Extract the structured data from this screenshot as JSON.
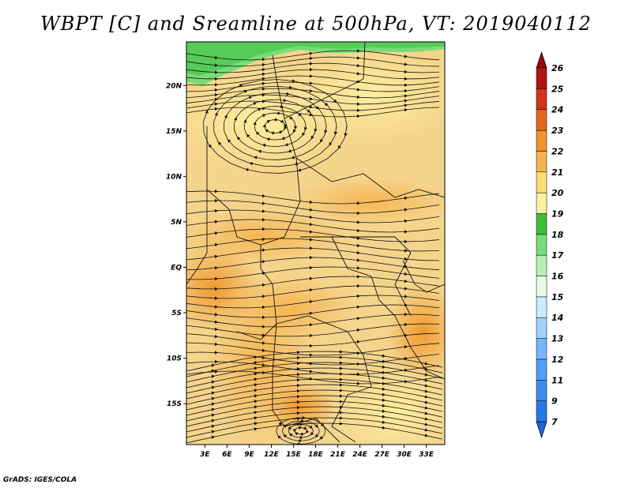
{
  "title": "WBPT [C] and Sreamline at 500hPa, VT: 2019040112",
  "credit": "GrADS: IGES/COLA",
  "chart_data": {
    "type": "heatmap",
    "title": "WBPT [C] and Sreamline at 500hPa, VT: 2019040112",
    "variable": "Wet-bulb potential temperature",
    "units": "C",
    "level": "500hPa",
    "valid_time": "2019040112",
    "x_ticks": [
      "3E",
      "6E",
      "9E",
      "12E",
      "15E",
      "18E",
      "21E",
      "24E",
      "27E",
      "30E",
      "33E"
    ],
    "x_tick_values": [
      3,
      6,
      9,
      12,
      15,
      18,
      21,
      24,
      27,
      30,
      33
    ],
    "y_ticks": [
      "20N",
      "15N",
      "10N",
      "5N",
      "EQ",
      "5S",
      "10S",
      "15S"
    ],
    "y_tick_values": [
      20,
      15,
      10,
      5,
      0,
      -5,
      -10,
      -15
    ],
    "xlim": [
      0.5,
      35.5
    ],
    "ylim": [
      -19.5,
      24.8
    ],
    "colorbar": {
      "levels": [
        "7",
        "9",
        "11",
        "12",
        "13",
        "14",
        "15",
        "16",
        "17",
        "18",
        "19",
        "20",
        "21",
        "22",
        "23",
        "24",
        "25",
        "26"
      ],
      "colors": [
        "#1e64dc",
        "#2878e6",
        "#3c8cf0",
        "#50a0f8",
        "#78b4fa",
        "#a0d2fa",
        "#c8ecfc",
        "#e6fae6",
        "#b4f0b4",
        "#78dc78",
        "#3cbe3c",
        "#fff0a0",
        "#fadc78",
        "#f5b450",
        "#f09628",
        "#e6641e",
        "#d2321e",
        "#b41414",
        "#960a0a"
      ],
      "placement": "right"
    },
    "fields": {
      "dominant_range": [
        19,
        22
      ],
      "green_region": "northern edge (17-18)",
      "orange_band": "equatorial west coast and southeast (22-23)"
    }
  }
}
